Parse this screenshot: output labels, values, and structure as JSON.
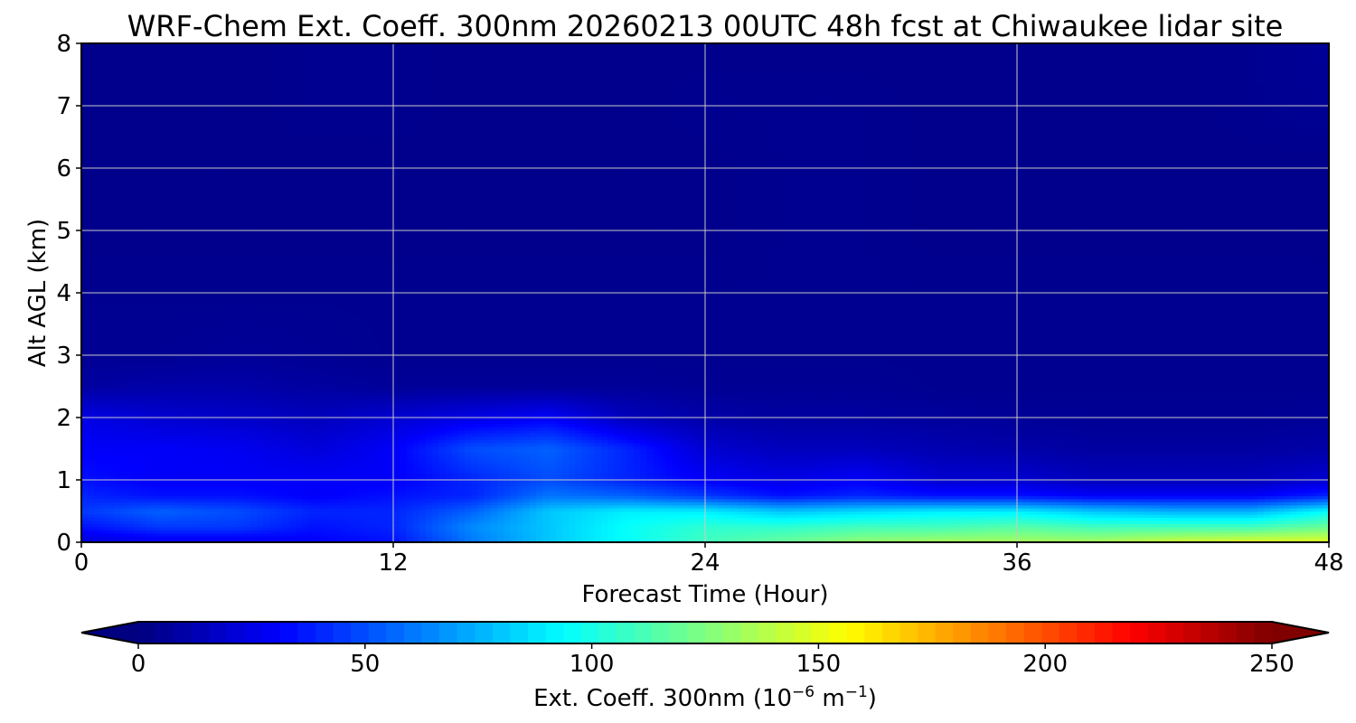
{
  "chart_data": {
    "type": "heatmap",
    "title": "WRF-Chem Ext. Coeff. 300nm  20260213 00UTC 48h fcst at Chiwaukee lidar site",
    "xlabel": "Forecast Time (Hour)",
    "ylabel": "Alt AGL (km)",
    "xlim": [
      0,
      48
    ],
    "ylim": [
      0,
      8
    ],
    "xticks": [
      0,
      12,
      24,
      36,
      48
    ],
    "yticks": [
      0,
      1,
      2,
      3,
      4,
      5,
      6,
      7,
      8
    ],
    "grid": true,
    "colormap": "jet",
    "colorbar": {
      "label_main": "Ext. Coeff. 300nm  (10",
      "label_exp1": "−6",
      "label_mid": " m",
      "label_exp2": "−1",
      "label_end": ")",
      "range": [
        0,
        250
      ],
      "ticks": [
        0,
        50,
        100,
        150,
        200,
        250
      ],
      "extend": "both",
      "position": "bottom"
    },
    "x_hours": [
      0,
      3,
      6,
      9,
      12,
      15,
      18,
      21,
      24,
      27,
      30,
      33,
      36,
      39,
      42,
      45,
      48
    ],
    "z_km": [
      0,
      0.25,
      0.5,
      0.75,
      1.0,
      1.5,
      2.0,
      2.5,
      3.0,
      4.0,
      5.0,
      6.0,
      7.0,
      8.0
    ],
    "values": [
      [
        20,
        25,
        25,
        30,
        35,
        60,
        80,
        95,
        110,
        120,
        130,
        135,
        135,
        135,
        145,
        150,
        150
      ],
      [
        35,
        45,
        45,
        35,
        40,
        65,
        80,
        95,
        105,
        105,
        110,
        110,
        115,
        110,
        110,
        110,
        120
      ],
      [
        45,
        55,
        50,
        40,
        40,
        55,
        80,
        90,
        90,
        80,
        85,
        90,
        90,
        80,
        75,
        75,
        95
      ],
      [
        40,
        35,
        35,
        30,
        35,
        40,
        60,
        55,
        45,
        35,
        40,
        35,
        35,
        30,
        30,
        30,
        40
      ],
      [
        35,
        30,
        30,
        30,
        30,
        40,
        50,
        40,
        30,
        25,
        30,
        20,
        20,
        15,
        15,
        15,
        20
      ],
      [
        30,
        30,
        28,
        22,
        30,
        50,
        55,
        40,
        20,
        15,
        15,
        12,
        10,
        8,
        8,
        8,
        10
      ],
      [
        25,
        20,
        18,
        15,
        20,
        25,
        30,
        15,
        10,
        8,
        8,
        7,
        6,
        5,
        5,
        5,
        6
      ],
      [
        8,
        10,
        10,
        8,
        6,
        6,
        6,
        6,
        5,
        5,
        5,
        4,
        4,
        4,
        4,
        4,
        4
      ],
      [
        5,
        5,
        6,
        5,
        4,
        4,
        4,
        4,
        4,
        4,
        4,
        4,
        4,
        4,
        4,
        4,
        4
      ],
      [
        4,
        4,
        4,
        4,
        4,
        4,
        4,
        4,
        4,
        4,
        4,
        4,
        4,
        4,
        4,
        4,
        4
      ],
      [
        3,
        3,
        3,
        3,
        3,
        3,
        3,
        3,
        3,
        4,
        4,
        3,
        3,
        3,
        3,
        3,
        3
      ],
      [
        3,
        3,
        3,
        3,
        3,
        3,
        3,
        3,
        3,
        4,
        4,
        3,
        3,
        3,
        3,
        3,
        3
      ],
      [
        3,
        3,
        3,
        4,
        4,
        3,
        3,
        3,
        4,
        4,
        4,
        3,
        3,
        3,
        3,
        4,
        5
      ],
      [
        3,
        3,
        3,
        4,
        4,
        3,
        3,
        3,
        3,
        3,
        3,
        3,
        3,
        3,
        3,
        4,
        6
      ]
    ]
  }
}
